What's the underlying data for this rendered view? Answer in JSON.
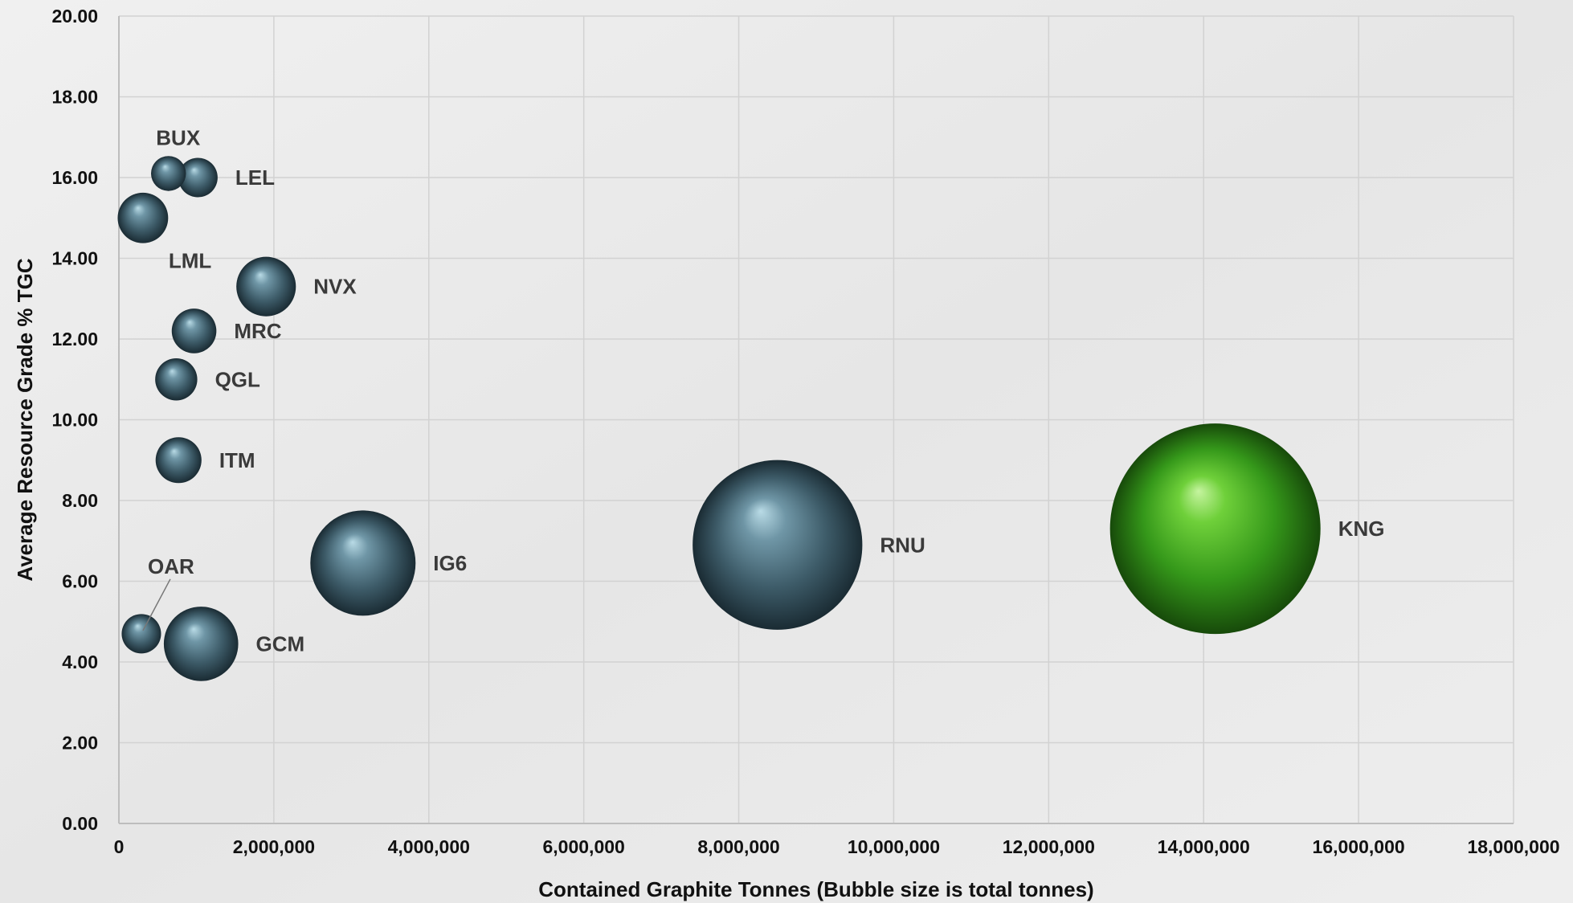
{
  "chart_data": {
    "type": "bubble",
    "title": "",
    "xlabel": "Contained Graphite Tonnes (Bubble size is total tonnes)",
    "ylabel": "Average Resource Grade % TGC",
    "xlim": [
      0,
      18000000
    ],
    "ylim": [
      0,
      20
    ],
    "x_ticks": [
      0,
      2000000,
      4000000,
      6000000,
      8000000,
      10000000,
      12000000,
      14000000,
      16000000,
      18000000
    ],
    "x_tick_labels": [
      "0",
      "2,000,000",
      "4,000,000",
      "6,000,000",
      "8,000,000",
      "10,000,000",
      "12,000,000",
      "14,000,000",
      "16,000,000",
      "18,000,000"
    ],
    "y_ticks": [
      0,
      2,
      4,
      6,
      8,
      10,
      12,
      14,
      16,
      18,
      20
    ],
    "y_tick_labels": [
      "0.00",
      "2.00",
      "4.00",
      "6.00",
      "8.00",
      "10.00",
      "12.00",
      "14.00",
      "16.00",
      "18.00",
      "20.00"
    ],
    "grid": true,
    "legend": "none",
    "bubble_color": "#4f6f7d",
    "highlight_color": "#3fa81a",
    "gridline_color": "#d2d2d2",
    "points": [
      {
        "label": "BUX",
        "x": 640000,
        "y": 16.1,
        "size": 1.1,
        "label_pos": "above"
      },
      {
        "label": "LEL",
        "x": 1020000,
        "y": 16.0,
        "size": 1.4,
        "label_pos": "right"
      },
      {
        "label": "LML",
        "x": 310000,
        "y": 15.0,
        "size": 2.3,
        "label_pos": "below-right"
      },
      {
        "label": "NVX",
        "x": 1900000,
        "y": 13.3,
        "size": 3.2,
        "label_pos": "right"
      },
      {
        "label": "MRC",
        "x": 970000,
        "y": 12.2,
        "size": 1.8,
        "label_pos": "right"
      },
      {
        "label": "QGL",
        "x": 740000,
        "y": 11.0,
        "size": 1.6,
        "label_pos": "right"
      },
      {
        "label": "ITM",
        "x": 770000,
        "y": 9.0,
        "size": 1.9,
        "label_pos": "right"
      },
      {
        "label": "IG6",
        "x": 3150000,
        "y": 6.45,
        "size": 10.0,
        "label_pos": "right"
      },
      {
        "label": "RNU",
        "x": 8500000,
        "y": 6.9,
        "size": 26.0,
        "label_pos": "right"
      },
      {
        "label": "KNG",
        "x": 14150000,
        "y": 7.3,
        "size": 40.0,
        "label_pos": "right",
        "highlight": true
      },
      {
        "label": "OAR",
        "x": 290000,
        "y": 4.7,
        "size": 1.4,
        "label_pos": "leader-above"
      },
      {
        "label": "GCM",
        "x": 1060000,
        "y": 4.45,
        "size": 5.0,
        "label_pos": "right"
      }
    ]
  }
}
